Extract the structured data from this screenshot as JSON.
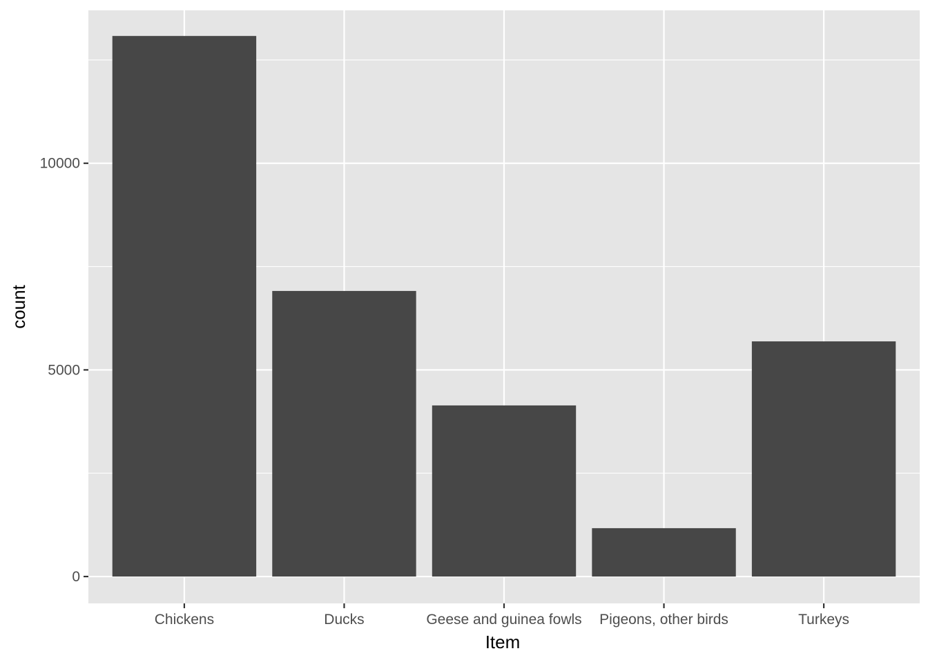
{
  "chart_data": {
    "type": "bar",
    "title": "",
    "xlabel": "Item",
    "ylabel": "count",
    "categories": [
      "Chickens",
      "Ducks",
      "Geese and guinea fowls",
      "Pigeons, other birds",
      "Turkeys"
    ],
    "values": [
      13080,
      6910,
      4140,
      1170,
      5690
    ],
    "ylim": [
      -650,
      13700
    ],
    "yticks": [
      0,
      5000,
      10000
    ],
    "ytick_labels": [
      "0",
      "5000",
      "10000"
    ],
    "grid": true,
    "legend": "none",
    "colors": {
      "panel_background": "#e5e5e5",
      "bar_fill": "#474747",
      "grid": "#ffffff"
    }
  }
}
